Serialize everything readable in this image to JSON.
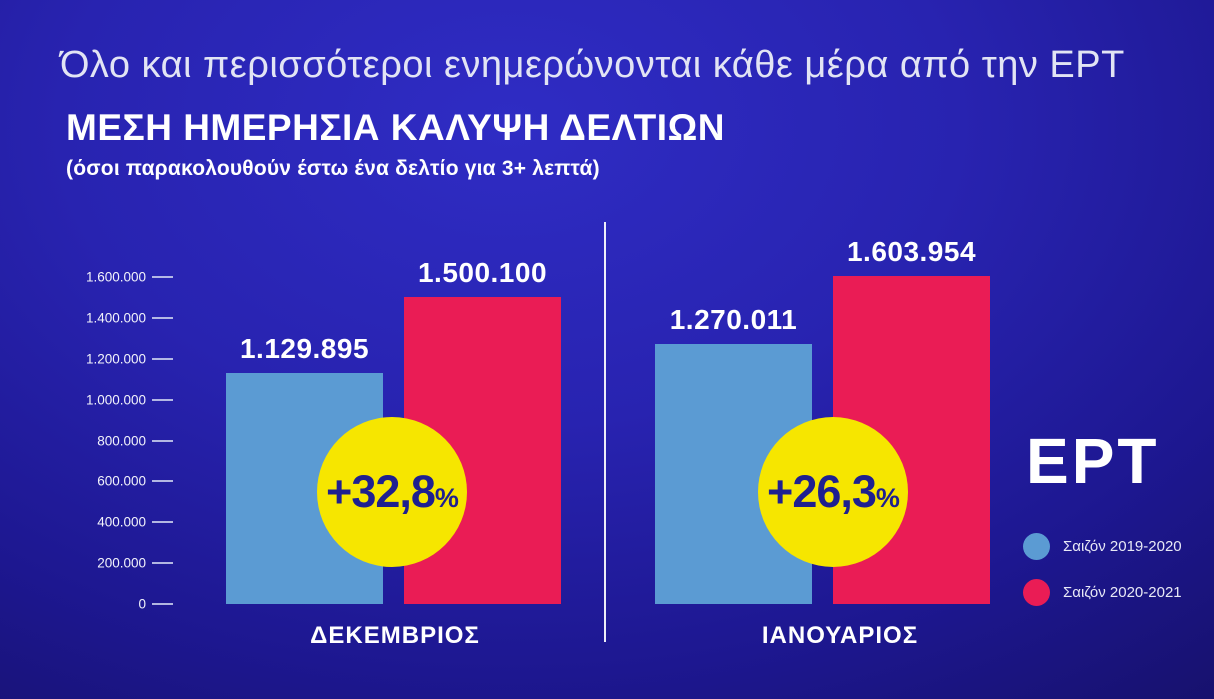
{
  "header": {
    "tagline": "Όλο και περισσότεροι ενημερώνονται κάθε μέρα από την ΕΡΤ",
    "title": "ΜΕΣΗ ΗΜΕΡΗΣΙΑ ΚΑΛΥΨΗ ΔΕΛΤΙΩΝ",
    "subtitle": "(όσοι παρακολουθούν έστω ένα δελτίο για 3+ λεπτά)"
  },
  "chart_data": {
    "type": "bar",
    "title": "ΜΕΣΗ ΗΜΕΡΗΣΙΑ ΚΑΛΥΨΗ ΔΕΛΤΙΩΝ",
    "subtitle": "(όσοι παρακολουθούν έστω ένα δελτίο για 3+ λεπτά)",
    "categories": [
      "ΔΕΚΕΜΒΡΙΟΣ",
      "ΙΑΝΟΥΑΡΙΟΣ"
    ],
    "series": [
      {
        "name": "Σαιζόν 2019-2020",
        "color": "#5b9bd3",
        "values": [
          1129895,
          1270011
        ],
        "value_labels": [
          "1.129.895",
          "1.270.011"
        ]
      },
      {
        "name": "Σαιζόν 2020-2021",
        "color": "#ea1c55",
        "values": [
          1500100,
          1603954
        ],
        "value_labels": [
          "1.500.100",
          "1.603.954"
        ]
      }
    ],
    "change_badges": [
      {
        "text": "+32,8",
        "suffix": "%"
      },
      {
        "text": "+26,3",
        "suffix": "%"
      }
    ],
    "ylim": [
      0,
      1600000
    ],
    "yticks": [
      {
        "value": 1600000,
        "label": "1.600.000"
      },
      {
        "value": 1400000,
        "label": "1.400.000"
      },
      {
        "value": 1200000,
        "label": "1.200.000"
      },
      {
        "value": 1000000,
        "label": "1.000.000"
      },
      {
        "value": 800000,
        "label": "800.000"
      },
      {
        "value": 600000,
        "label": "600.000"
      },
      {
        "value": 400000,
        "label": "400.000"
      },
      {
        "value": 200000,
        "label": "200.000"
      },
      {
        "value": 0,
        "label": "0"
      }
    ],
    "grid": false,
    "legend_position": "right"
  },
  "logo": {
    "text": "ΕΡΤ"
  },
  "colors": {
    "background_center": "#2f2cc4",
    "background_edge": "#110a48",
    "bar_blue": "#5b9bd3",
    "bar_red": "#ea1c55",
    "badge_yellow": "#f6e600",
    "badge_text_navy": "#1f2090",
    "title_white": "#ffffff",
    "tagline_lavender": "#e2e4f4"
  }
}
